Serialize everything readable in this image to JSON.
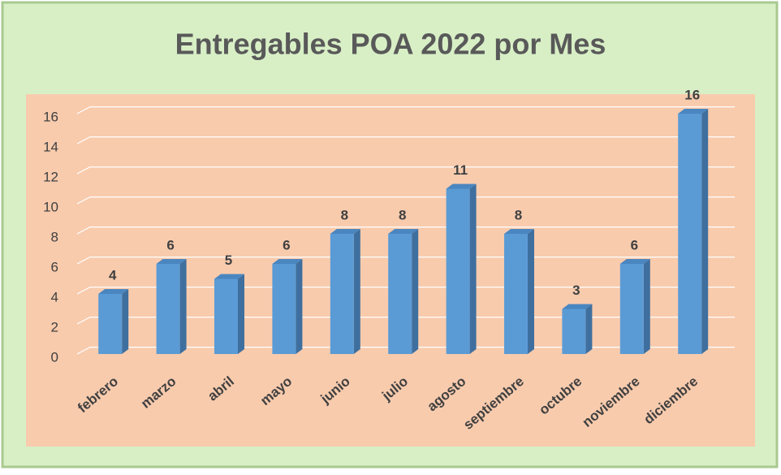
{
  "chart_data": {
    "type": "bar",
    "title": "Entregables  POA 2022 por Mes",
    "categories": [
      "febrero",
      "marzo",
      "abril",
      "mayo",
      "junio",
      "julio",
      "agosto",
      "septiembre",
      "octubre",
      "noviembre",
      "diciembre"
    ],
    "values": [
      4,
      6,
      5,
      6,
      8,
      8,
      11,
      8,
      3,
      6,
      16
    ],
    "color": "#5b9bd5",
    "ylim": [
      0,
      16
    ],
    "yticks": [
      0,
      2,
      4,
      6,
      8,
      10,
      12,
      14,
      16
    ],
    "grid": true
  }
}
